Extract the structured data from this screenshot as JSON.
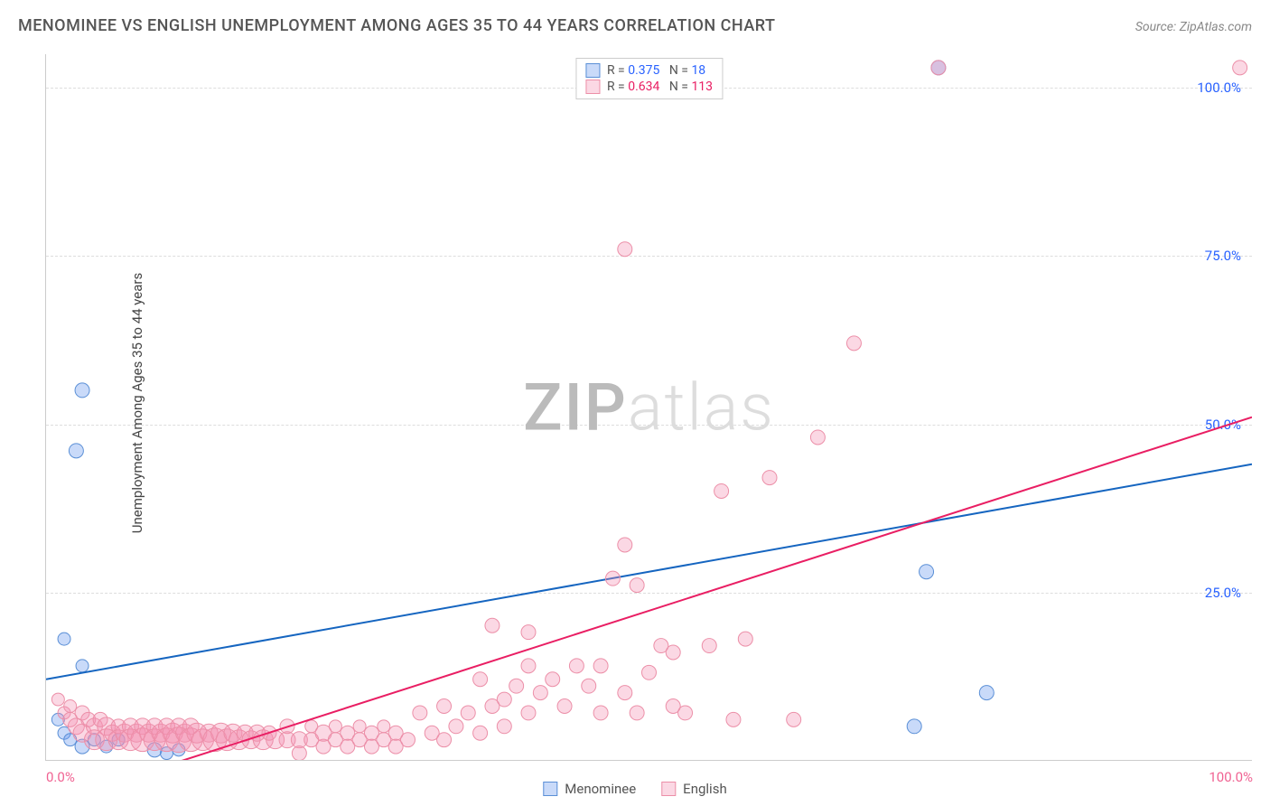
{
  "title": "MENOMINEE VS ENGLISH UNEMPLOYMENT AMONG AGES 35 TO 44 YEARS CORRELATION CHART",
  "source": "Source: ZipAtlas.com",
  "ylabel": "Unemployment Among Ages 35 to 44 years",
  "watermark_a": "ZIP",
  "watermark_b": "atlas",
  "chart": {
    "type": "scatter",
    "xlim": [
      0,
      100
    ],
    "ylim": [
      0,
      105
    ],
    "y_ticks": [
      25,
      50,
      75,
      100
    ],
    "x_ticks": [
      0,
      100
    ],
    "tick_suffix": "%",
    "grid_color": "#dddddd",
    "background_color": "#ffffff",
    "colors": {
      "blue_fill": "rgba(100,149,237,0.35)",
      "blue_stroke": "#5a8fd6",
      "blue_line": "#1565c0",
      "pink_fill": "rgba(244,143,177,0.35)",
      "pink_stroke": "#ec8fa8",
      "pink_line": "#e91e63",
      "tick_blue": "#2962ff",
      "tick_pink": "#f06292"
    },
    "marker_radius": 8,
    "line_width": 2,
    "series": [
      {
        "name": "Menominee",
        "r": "0.375",
        "n": "18",
        "color_key": "blue",
        "trend": {
          "x1": 0,
          "y1": 12,
          "x2": 100,
          "y2": 44
        },
        "points": [
          {
            "x": 3,
            "y": 55,
            "r": 8
          },
          {
            "x": 2.5,
            "y": 46,
            "r": 8
          },
          {
            "x": 1.5,
            "y": 18,
            "r": 7
          },
          {
            "x": 3,
            "y": 14,
            "r": 7
          },
          {
            "x": 1,
            "y": 6,
            "r": 7
          },
          {
            "x": 1.5,
            "y": 4,
            "r": 7
          },
          {
            "x": 2,
            "y": 3,
            "r": 7
          },
          {
            "x": 3,
            "y": 2,
            "r": 8
          },
          {
            "x": 4,
            "y": 3,
            "r": 7
          },
          {
            "x": 5,
            "y": 2,
            "r": 7
          },
          {
            "x": 6,
            "y": 3,
            "r": 7
          },
          {
            "x": 9,
            "y": 1.5,
            "r": 8
          },
          {
            "x": 10,
            "y": 1,
            "r": 7
          },
          {
            "x": 11,
            "y": 1.5,
            "r": 7
          },
          {
            "x": 73,
            "y": 28,
            "r": 8
          },
          {
            "x": 72,
            "y": 5,
            "r": 8
          },
          {
            "x": 78,
            "y": 10,
            "r": 8
          },
          {
            "x": 74,
            "y": 103,
            "r": 8
          }
        ]
      },
      {
        "name": "English",
        "r": "0.634",
        "n": "113",
        "color_key": "pink",
        "trend": {
          "x1": 8,
          "y1": -2,
          "x2": 100,
          "y2": 51
        },
        "points": [
          {
            "x": 1,
            "y": 9,
            "r": 7
          },
          {
            "x": 1.5,
            "y": 7,
            "r": 7
          },
          {
            "x": 2,
            "y": 8,
            "r": 7
          },
          {
            "x": 2,
            "y": 6,
            "r": 8
          },
          {
            "x": 2.5,
            "y": 5,
            "r": 9
          },
          {
            "x": 3,
            "y": 7,
            "r": 8
          },
          {
            "x": 3,
            "y": 4,
            "r": 10
          },
          {
            "x": 3.5,
            "y": 6,
            "r": 8
          },
          {
            "x": 4,
            "y": 5,
            "r": 9
          },
          {
            "x": 4,
            "y": 3,
            "r": 11
          },
          {
            "x": 4.5,
            "y": 6,
            "r": 8
          },
          {
            "x": 5,
            "y": 5,
            "r": 10
          },
          {
            "x": 5,
            "y": 3,
            "r": 12
          },
          {
            "x": 5.5,
            "y": 4,
            "r": 9
          },
          {
            "x": 6,
            "y": 5,
            "r": 8
          },
          {
            "x": 6,
            "y": 3,
            "r": 11
          },
          {
            "x": 6.5,
            "y": 4,
            "r": 10
          },
          {
            "x": 7,
            "y": 5,
            "r": 9
          },
          {
            "x": 7,
            "y": 3,
            "r": 12
          },
          {
            "x": 7.5,
            "y": 4,
            "r": 10
          },
          {
            "x": 8,
            "y": 5,
            "r": 9
          },
          {
            "x": 8,
            "y": 3,
            "r": 13
          },
          {
            "x": 8.5,
            "y": 4,
            "r": 10
          },
          {
            "x": 9,
            "y": 5,
            "r": 9
          },
          {
            "x": 9,
            "y": 3,
            "r": 12
          },
          {
            "x": 9.5,
            "y": 4,
            "r": 10
          },
          {
            "x": 10,
            "y": 5,
            "r": 9
          },
          {
            "x": 10,
            "y": 3,
            "r": 13
          },
          {
            "x": 10.5,
            "y": 4,
            "r": 11
          },
          {
            "x": 11,
            "y": 5,
            "r": 9
          },
          {
            "x": 11,
            "y": 3,
            "r": 14
          },
          {
            "x": 11.5,
            "y": 4,
            "r": 10
          },
          {
            "x": 12,
            "y": 5,
            "r": 9
          },
          {
            "x": 12,
            "y": 3,
            "r": 13
          },
          {
            "x": 12.5,
            "y": 4,
            "r": 11
          },
          {
            "x": 13,
            "y": 3,
            "r": 12
          },
          {
            "x": 13.5,
            "y": 4,
            "r": 10
          },
          {
            "x": 14,
            "y": 3,
            "r": 13
          },
          {
            "x": 14.5,
            "y": 4,
            "r": 11
          },
          {
            "x": 15,
            "y": 3,
            "r": 12
          },
          {
            "x": 15.5,
            "y": 4,
            "r": 10
          },
          {
            "x": 16,
            "y": 3,
            "r": 11
          },
          {
            "x": 16.5,
            "y": 4,
            "r": 9
          },
          {
            "x": 17,
            "y": 3,
            "r": 10
          },
          {
            "x": 17.5,
            "y": 4,
            "r": 9
          },
          {
            "x": 18,
            "y": 3,
            "r": 11
          },
          {
            "x": 18.5,
            "y": 4,
            "r": 8
          },
          {
            "x": 19,
            "y": 3,
            "r": 10
          },
          {
            "x": 20,
            "y": 3,
            "r": 9
          },
          {
            "x": 20,
            "y": 5,
            "r": 8
          },
          {
            "x": 21,
            "y": 3,
            "r": 9
          },
          {
            "x": 21,
            "y": 1,
            "r": 8
          },
          {
            "x": 22,
            "y": 3,
            "r": 8
          },
          {
            "x": 22,
            "y": 5,
            "r": 7
          },
          {
            "x": 23,
            "y": 2,
            "r": 8
          },
          {
            "x": 23,
            "y": 4,
            "r": 9
          },
          {
            "x": 24,
            "y": 3,
            "r": 8
          },
          {
            "x": 24,
            "y": 5,
            "r": 7
          },
          {
            "x": 25,
            "y": 2,
            "r": 8
          },
          {
            "x": 25,
            "y": 4,
            "r": 8
          },
          {
            "x": 26,
            "y": 3,
            "r": 8
          },
          {
            "x": 26,
            "y": 5,
            "r": 7
          },
          {
            "x": 27,
            "y": 2,
            "r": 8
          },
          {
            "x": 27,
            "y": 4,
            "r": 8
          },
          {
            "x": 28,
            "y": 3,
            "r": 8
          },
          {
            "x": 28,
            "y": 5,
            "r": 7
          },
          {
            "x": 29,
            "y": 2,
            "r": 8
          },
          {
            "x": 29,
            "y": 4,
            "r": 8
          },
          {
            "x": 30,
            "y": 3,
            "r": 8
          },
          {
            "x": 31,
            "y": 7,
            "r": 8
          },
          {
            "x": 32,
            "y": 4,
            "r": 8
          },
          {
            "x": 33,
            "y": 8,
            "r": 8
          },
          {
            "x": 33,
            "y": 3,
            "r": 8
          },
          {
            "x": 34,
            "y": 5,
            "r": 8
          },
          {
            "x": 35,
            "y": 7,
            "r": 8
          },
          {
            "x": 36,
            "y": 4,
            "r": 8
          },
          {
            "x": 36,
            "y": 12,
            "r": 8
          },
          {
            "x": 37,
            "y": 8,
            "r": 8
          },
          {
            "x": 37,
            "y": 20,
            "r": 8
          },
          {
            "x": 38,
            "y": 5,
            "r": 8
          },
          {
            "x": 38,
            "y": 9,
            "r": 8
          },
          {
            "x": 39,
            "y": 11,
            "r": 8
          },
          {
            "x": 40,
            "y": 7,
            "r": 8
          },
          {
            "x": 40,
            "y": 14,
            "r": 8
          },
          {
            "x": 40,
            "y": 19,
            "r": 8
          },
          {
            "x": 41,
            "y": 10,
            "r": 8
          },
          {
            "x": 42,
            "y": 12,
            "r": 8
          },
          {
            "x": 43,
            "y": 8,
            "r": 8
          },
          {
            "x": 44,
            "y": 14,
            "r": 8
          },
          {
            "x": 45,
            "y": 11,
            "r": 8
          },
          {
            "x": 46,
            "y": 7,
            "r": 8
          },
          {
            "x": 46,
            "y": 14,
            "r": 8
          },
          {
            "x": 47,
            "y": 27,
            "r": 8
          },
          {
            "x": 48,
            "y": 10,
            "r": 8
          },
          {
            "x": 48,
            "y": 32,
            "r": 8
          },
          {
            "x": 49,
            "y": 7,
            "r": 8
          },
          {
            "x": 49,
            "y": 26,
            "r": 8
          },
          {
            "x": 50,
            "y": 13,
            "r": 8
          },
          {
            "x": 51,
            "y": 17,
            "r": 8
          },
          {
            "x": 52,
            "y": 8,
            "r": 8
          },
          {
            "x": 52,
            "y": 16,
            "r": 8
          },
          {
            "x": 53,
            "y": 7,
            "r": 8
          },
          {
            "x": 55,
            "y": 17,
            "r": 8
          },
          {
            "x": 56,
            "y": 40,
            "r": 8
          },
          {
            "x": 57,
            "y": 6,
            "r": 8
          },
          {
            "x": 58,
            "y": 18,
            "r": 8
          },
          {
            "x": 48,
            "y": 76,
            "r": 8
          },
          {
            "x": 60,
            "y": 42,
            "r": 8
          },
          {
            "x": 62,
            "y": 6,
            "r": 8
          },
          {
            "x": 64,
            "y": 48,
            "r": 8
          },
          {
            "x": 67,
            "y": 62,
            "r": 8
          },
          {
            "x": 99,
            "y": 103,
            "r": 8
          },
          {
            "x": 74,
            "y": 103,
            "r": 8
          }
        ]
      }
    ]
  },
  "legend_bottom": [
    {
      "label": "Menominee",
      "color_key": "blue"
    },
    {
      "label": "English",
      "color_key": "pink"
    }
  ]
}
